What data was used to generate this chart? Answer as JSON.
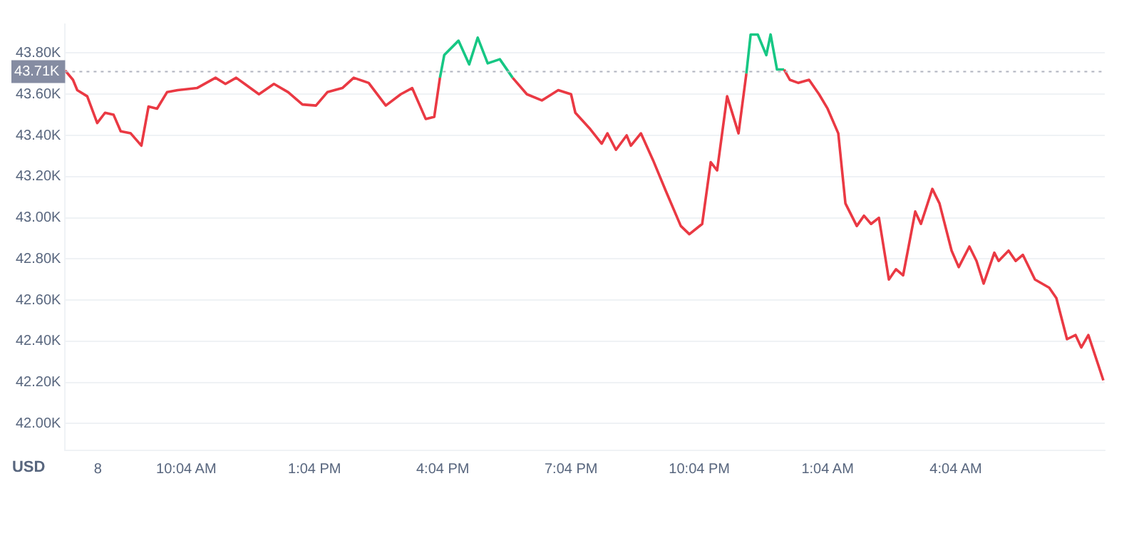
{
  "chart_data": {
    "type": "line",
    "ylabel": "USD",
    "x": [
      "--02-08T07:14",
      "--02-08T07:25",
      "--02-08T07:31",
      "--02-08T07:45",
      "--02-08T07:59",
      "--02-08T08:10",
      "--02-08T08:22",
      "--02-08T08:32",
      "--02-08T08:46",
      "--02-08T09:01",
      "--02-08T09:11",
      "--02-08T09:23",
      "--02-08T09:37",
      "--02-08T09:52",
      "--02-08T10:19",
      "--02-08T10:45",
      "--02-08T10:59",
      "--02-08T11:14",
      "--02-08T11:26",
      "--02-08T11:46",
      "--02-08T12:07",
      "--02-08T12:27",
      "--02-08T12:47",
      "--02-08T13:06",
      "--02-08T13:22",
      "--02-08T13:43",
      "--02-08T13:59",
      "--02-08T14:20",
      "--02-08T14:44",
      "--02-08T15:05",
      "--02-08T15:21",
      "--02-08T15:40",
      "--02-08T15:52",
      "--02-08T16:00",
      "--02-08T16:06",
      "--02-08T16:26",
      "--02-08T16:41",
      "--02-08T16:53",
      "--02-08T17:07",
      "--02-08T17:24",
      "--02-08T17:42",
      "--02-08T18:02",
      "--02-08T18:23",
      "--02-08T18:46",
      "--02-08T19:04",
      "--02-08T19:10",
      "--02-08T19:31",
      "--02-08T19:47",
      "--02-08T19:55",
      "--02-08T20:07",
      "--02-08T20:22",
      "--02-08T20:28",
      "--02-08T20:42",
      "--02-08T20:59",
      "--02-08T21:17",
      "--02-08T21:38",
      "--02-08T21:50",
      "--02-08T22:08",
      "--02-08T22:20",
      "--02-08T22:29",
      "--02-08T22:43",
      "--02-08T22:59",
      "--02-08T23:10",
      "--02-08T23:16",
      "--02-08T23:26",
      "--02-08T23:38",
      "--02-08T23:44",
      "--02-08T23:53",
      "--02-09T00:03",
      "--02-09T00:11",
      "--02-09T00:23",
      "--02-09T00:38",
      "--02-09T00:52",
      "--02-09T01:04",
      "--02-09T01:19",
      "--02-09T01:29",
      "--02-09T01:45",
      "--02-09T01:55",
      "--02-09T02:05",
      "--02-09T02:16",
      "--02-09T02:30",
      "--02-09T02:40",
      "--02-09T02:50",
      "--02-09T03:07",
      "--02-09T03:15",
      "--02-09T03:31",
      "--02-09T03:41",
      "--02-09T03:58",
      "--02-09T04:08",
      "--02-09T04:23",
      "--02-09T04:33",
      "--02-09T04:43",
      "--02-09T04:58",
      "--02-09T05:04",
      "--02-09T05:18",
      "--02-09T05:28",
      "--02-09T05:38",
      "--02-09T05:55",
      "--02-09T06:15",
      "--02-09T06:25",
      "--02-09T06:40",
      "--02-09T06:52",
      "--02-09T07:00",
      "--02-09T07:10",
      "--02-09T07:31"
    ],
    "series": [
      {
        "color": "#ea3943",
        "values": [
          43715,
          43670,
          43620,
          43590,
          43460,
          43510,
          43500,
          43420,
          43410,
          43350,
          43540,
          43530,
          43610,
          43620,
          43630,
          43680,
          43650,
          43680,
          43650,
          43600,
          43650,
          43610,
          43550,
          43545,
          43610,
          43630,
          43680,
          43655,
          43545,
          43600,
          43630,
          43480,
          43490,
          43680,
          null,
          null,
          null,
          null,
          null,
          null,
          43680,
          43600,
          43570,
          43620,
          43600,
          43510,
          43430,
          43360,
          43410,
          43330,
          43400,
          43350,
          43410,
          43280,
          43130,
          42960,
          42920,
          42970,
          43270,
          43230,
          43590,
          43410,
          43700,
          null,
          null,
          null,
          null,
          null,
          43720,
          43670,
          43655,
          43670,
          43600,
          43530,
          43410,
          43070,
          42960,
          43010,
          42970,
          43000,
          42700,
          42750,
          42720,
          43030,
          42970,
          43140,
          43070,
          42840,
          42760,
          42860,
          42790,
          42680,
          42830,
          42790,
          42840,
          42790,
          42820,
          42700,
          42660,
          42610,
          42410,
          42430,
          42370,
          42430,
          42210
        ]
      },
      {
        "color": "#16c784",
        "values": [
          null,
          null,
          null,
          null,
          null,
          null,
          null,
          null,
          null,
          null,
          null,
          null,
          null,
          null,
          null,
          null,
          null,
          null,
          null,
          null,
          null,
          null,
          null,
          null,
          null,
          null,
          null,
          null,
          null,
          null,
          null,
          null,
          null,
          43680,
          43790,
          43860,
          43745,
          43875,
          43750,
          43770,
          43680,
          null,
          null,
          null,
          null,
          null,
          null,
          null,
          null,
          null,
          null,
          null,
          null,
          null,
          null,
          null,
          null,
          null,
          null,
          null,
          null,
          null,
          43700,
          43890,
          43890,
          43790,
          43890,
          43720,
          43720,
          null,
          null,
          null,
          null,
          null,
          null,
          null,
          null,
          null,
          null,
          null,
          null,
          null,
          null,
          null,
          null,
          null,
          null,
          null,
          null,
          null,
          null,
          null,
          null,
          null,
          null,
          null,
          null,
          null,
          null,
          null,
          null,
          null,
          null,
          null,
          null
        ]
      }
    ],
    "xlim": [
      "--02-08T07:14",
      "--02-09T07:33"
    ],
    "xticks": [
      {
        "value": "--02-08T08:00",
        "label": "8"
      },
      {
        "value": "--02-08T10:04",
        "label": "10:04 AM"
      },
      {
        "value": "--02-08T13:04",
        "label": "1:04 PM"
      },
      {
        "value": "--02-08T16:04",
        "label": "4:04 PM"
      },
      {
        "value": "--02-08T19:04",
        "label": "7:04 PM"
      },
      {
        "value": "--02-08T22:04",
        "label": "10:04 PM"
      },
      {
        "value": "--02-09T01:04",
        "label": "1:04 AM"
      },
      {
        "value": "--02-09T04:04",
        "label": "4:04 AM"
      }
    ],
    "ylim": [
      41870,
      43940
    ],
    "yticks": [
      {
        "value": 42000,
        "label": "42.00K"
      },
      {
        "value": 42200,
        "label": "42.20K"
      },
      {
        "value": 42400,
        "label": "42.40K"
      },
      {
        "value": 42600,
        "label": "42.60K"
      },
      {
        "value": 42800,
        "label": "42.80K"
      },
      {
        "value": 43000,
        "label": "43.00K"
      },
      {
        "value": 43200,
        "label": "43.20K"
      },
      {
        "value": 43400,
        "label": "43.40K"
      },
      {
        "value": 43600,
        "label": "43.60K"
      },
      {
        "value": 43800,
        "label": "43.80K"
      }
    ],
    "ref_lines": [
      {
        "axis": "y",
        "value": 43710,
        "label": "43.71K",
        "color": "#b0b3bf",
        "line_style": "dotted"
      }
    ],
    "grid": "y",
    "legend": false,
    "marker": "none",
    "line_style": "solid"
  }
}
